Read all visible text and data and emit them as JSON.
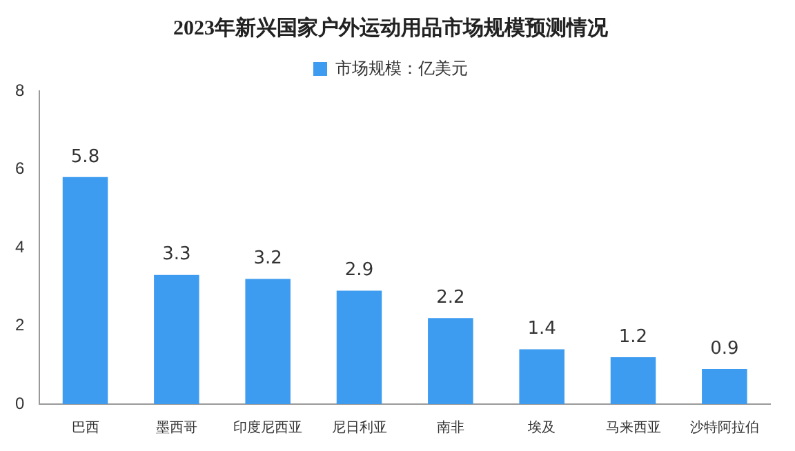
{
  "chart_data": {
    "type": "bar",
    "title": "2023年新兴国家户外运动用品市场规模预测情况",
    "categories": [
      "巴西",
      "墨西哥",
      "印度尼西亚",
      "尼日利亚",
      "南非",
      "埃及",
      "马来西亚",
      "沙特阿拉伯"
    ],
    "series": [
      {
        "name": "市场规模：亿美元",
        "color": "#3d9bf0",
        "values": [
          5.8,
          3.3,
          3.2,
          2.9,
          2.2,
          1.4,
          1.2,
          0.9
        ]
      }
    ],
    "ylim": [
      0,
      8
    ],
    "yticks": [
      0,
      2,
      4,
      6,
      8
    ],
    "grid": false,
    "legend": "top",
    "data_labels": true
  }
}
